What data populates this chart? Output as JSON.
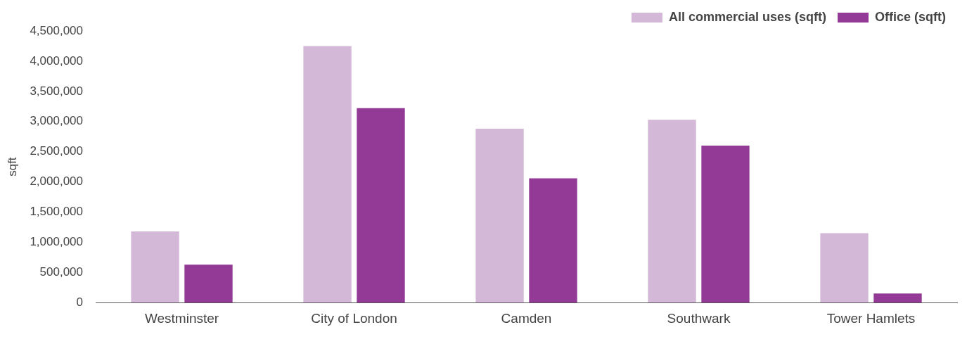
{
  "chart_data": {
    "type": "bar",
    "ylabel": "sqft",
    "categories": [
      "Westminster",
      "City of London",
      "Camden",
      "Southwark",
      "Tower Hamlets"
    ],
    "series": [
      {
        "name": "All commercial uses (sqft)",
        "color": "#d4b8d8",
        "values": [
          1180000,
          4250000,
          2880000,
          3030000,
          1150000
        ]
      },
      {
        "name": "Office (sqft)",
        "color": "#923a96",
        "values": [
          630000,
          3220000,
          2060000,
          2600000,
          150000
        ]
      }
    ],
    "ylim": [
      0,
      4500000
    ],
    "yticks": [
      {
        "value": 0,
        "label": "0"
      },
      {
        "value": 500000,
        "label": "500,000"
      },
      {
        "value": 1000000,
        "label": "1,000,000"
      },
      {
        "value": 1500000,
        "label": "1,500,000"
      },
      {
        "value": 2000000,
        "label": "2,000,000"
      },
      {
        "value": 2500000,
        "label": "2,500,000"
      },
      {
        "value": 3000000,
        "label": "3,000,000"
      },
      {
        "value": 3500000,
        "label": "3,500,000"
      },
      {
        "value": 4000000,
        "label": "4,000,000"
      },
      {
        "value": 4500000,
        "label": "4,500,000"
      }
    ],
    "grid": false,
    "legend": "top right"
  }
}
